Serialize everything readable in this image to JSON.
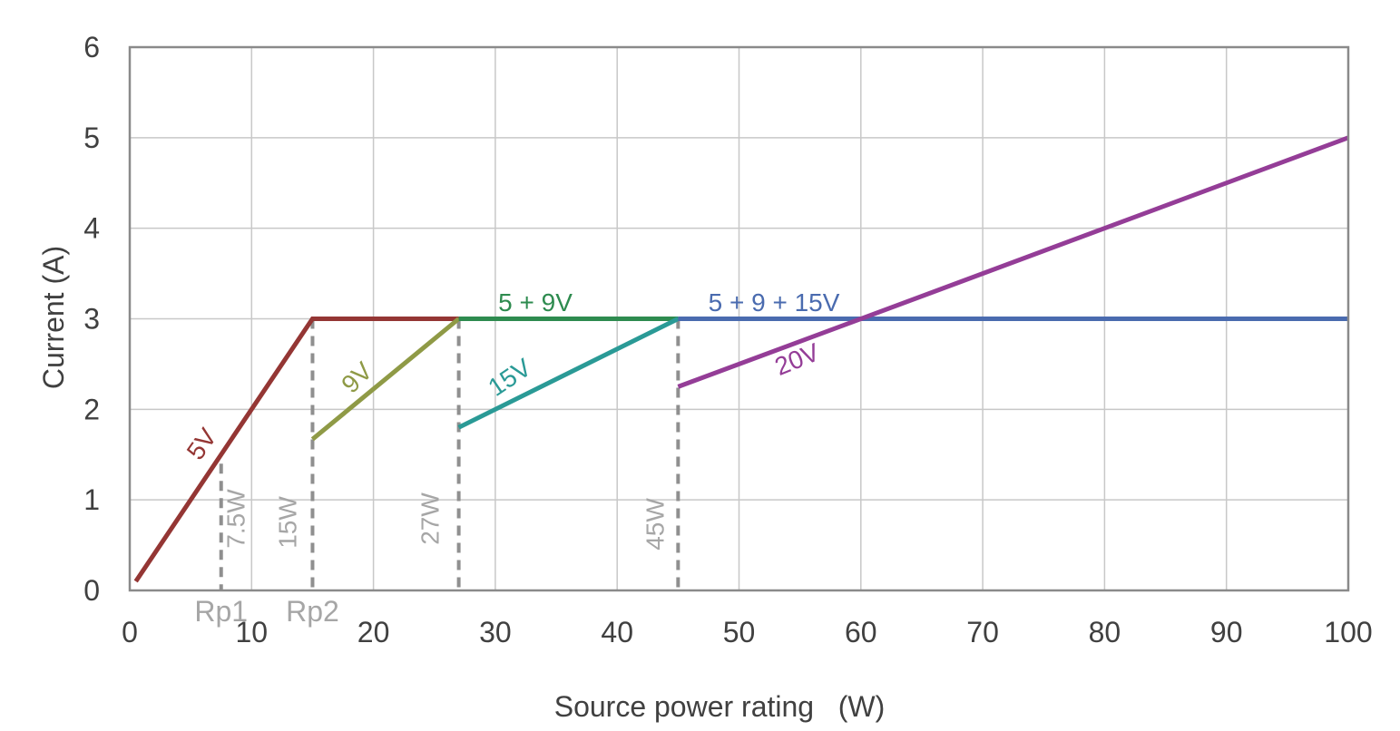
{
  "chart_data": {
    "type": "line",
    "title": "",
    "xlabel": "Source power rating   (W)",
    "ylabel": "Current (A)",
    "xlim": [
      0,
      100
    ],
    "ylim": [
      0,
      6
    ],
    "xticks": [
      0,
      10,
      20,
      30,
      40,
      50,
      60,
      70,
      80,
      90,
      100
    ],
    "yticks": [
      0,
      1,
      2,
      3,
      4,
      5,
      6
    ],
    "grid": true,
    "legend": "none",
    "series": [
      {
        "label": "5V",
        "color": "#943634",
        "points": [
          [
            0.5,
            0.1
          ],
          [
            15,
            3
          ],
          [
            27,
            3
          ]
        ]
      },
      {
        "label": "9V",
        "color": "#8f9a46",
        "points": [
          [
            15,
            1.67
          ],
          [
            27,
            3
          ]
        ]
      },
      {
        "label": "5 + 9V",
        "color": "#2e8b4f",
        "points": [
          [
            27,
            3
          ],
          [
            45,
            3
          ]
        ]
      },
      {
        "label": "15V",
        "color": "#2a9a96",
        "points": [
          [
            27,
            1.8
          ],
          [
            45,
            3
          ]
        ]
      },
      {
        "label": "5 + 9 + 15V",
        "color": "#4a6baf",
        "points": [
          [
            45,
            3
          ],
          [
            100,
            3
          ]
        ]
      },
      {
        "label": "20V",
        "color": "#943d97",
        "points": [
          [
            45,
            2.25
          ],
          [
            100,
            5
          ]
        ]
      }
    ],
    "markers": [
      {
        "name": "Rp1",
        "x": 7.5,
        "ymax": 1.4,
        "label": "7.5W",
        "axis_label": "Rp1"
      },
      {
        "name": "Rp2",
        "x": 15,
        "ymax": 3,
        "label": "15W",
        "axis_label": "Rp2"
      },
      {
        "name": "27W",
        "x": 27,
        "ymax": 3,
        "label": "27W",
        "axis_label": ""
      },
      {
        "name": "45W",
        "x": 45,
        "ymax": 3,
        "label": "45W",
        "axis_label": ""
      }
    ]
  }
}
